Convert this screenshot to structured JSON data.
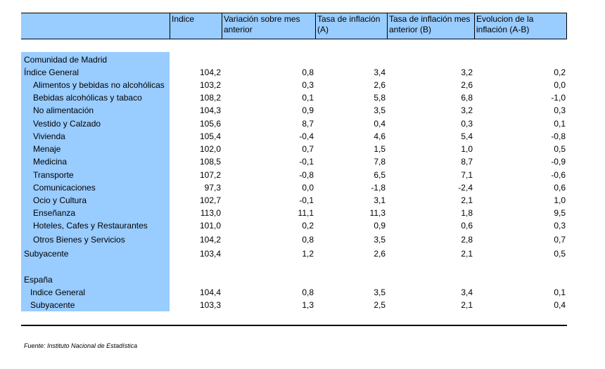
{
  "header": {
    "col1": "Indice",
    "col2": "Variación sobre mes anterior",
    "col3": "Tasa de inflación (A)",
    "col4": "Tasa de inflación mes anterior (B)",
    "col5": "Evolucion de la inflación (A-B)"
  },
  "colors": {
    "header_bg": "#99ccff",
    "label_col_bg": "#99ccff"
  },
  "sections": {
    "madrid_title": "Comunidad de Madrid",
    "espana_title": "España"
  },
  "rows": [
    {
      "label": "Índice General",
      "v": [
        "104,2",
        "0,8",
        "3,4",
        "3,2",
        "0,2"
      ]
    },
    {
      "label": "Alimentos y bebidas no alcohólicas",
      "v": [
        "103,2",
        "0,3",
        "2,6",
        "2,6",
        "0,0"
      ]
    },
    {
      "label": "Bebidas alcohólicas y tabaco",
      "v": [
        "108,2",
        "0,1",
        "5,8",
        "6,8",
        "-1,0"
      ]
    },
    {
      "label": "No alimentación",
      "v": [
        "104,3",
        "0,9",
        "3,5",
        "3,2",
        "0,3"
      ]
    },
    {
      "label": "Vestido y Calzado",
      "v": [
        "105,6",
        "8,7",
        "0,4",
        "0,3",
        "0,1"
      ]
    },
    {
      "label": "Vivienda",
      "v": [
        "105,4",
        "-0,4",
        "4,6",
        "5,4",
        "-0,8"
      ]
    },
    {
      "label": "Menaje",
      "v": [
        "102,0",
        "0,7",
        "1,5",
        "1,0",
        "0,5"
      ]
    },
    {
      "label": "Medicina",
      "v": [
        "108,5",
        "-0,1",
        "7,8",
        "8,7",
        "-0,9"
      ]
    },
    {
      "label": "Transporte",
      "v": [
        "107,2",
        "-0,8",
        "6,5",
        "7,1",
        "-0,6"
      ]
    },
    {
      "label": "Comunicaciones",
      "v": [
        "97,3",
        "0,0",
        "-1,8",
        "-2,4",
        "0,6"
      ]
    },
    {
      "label": "Ocio y Cultura",
      "v": [
        "102,7",
        "-0,1",
        "3,1",
        "2,1",
        "1,0"
      ]
    },
    {
      "label": "Enseñanza",
      "v": [
        "113,0",
        "11,1",
        "11,3",
        "1,8",
        "9,5"
      ]
    },
    {
      "label": "Hoteles, Cafes y Restaurantes",
      "v": [
        "101,0",
        "0,2",
        "0,9",
        "0,6",
        "0,3"
      ]
    },
    {
      "label": "Otros Bienes y Servicios",
      "v": [
        "104,2",
        "0,8",
        "3,5",
        "2,8",
        "0,7"
      ]
    },
    {
      "label": "Subyacente",
      "v": [
        "103,4",
        "1,2",
        "2,6",
        "2,1",
        "0,5"
      ]
    },
    {
      "label": "Indice General",
      "v": [
        "104,4",
        "0,8",
        "3,5",
        "3,4",
        "0,1"
      ]
    },
    {
      "label": "Subyacente",
      "v": [
        "103,3",
        "1,3",
        "2,5",
        "2,1",
        "0,4"
      ]
    }
  ],
  "footer": {
    "source": "Fuente: Instituto Nacional de Estadística"
  }
}
